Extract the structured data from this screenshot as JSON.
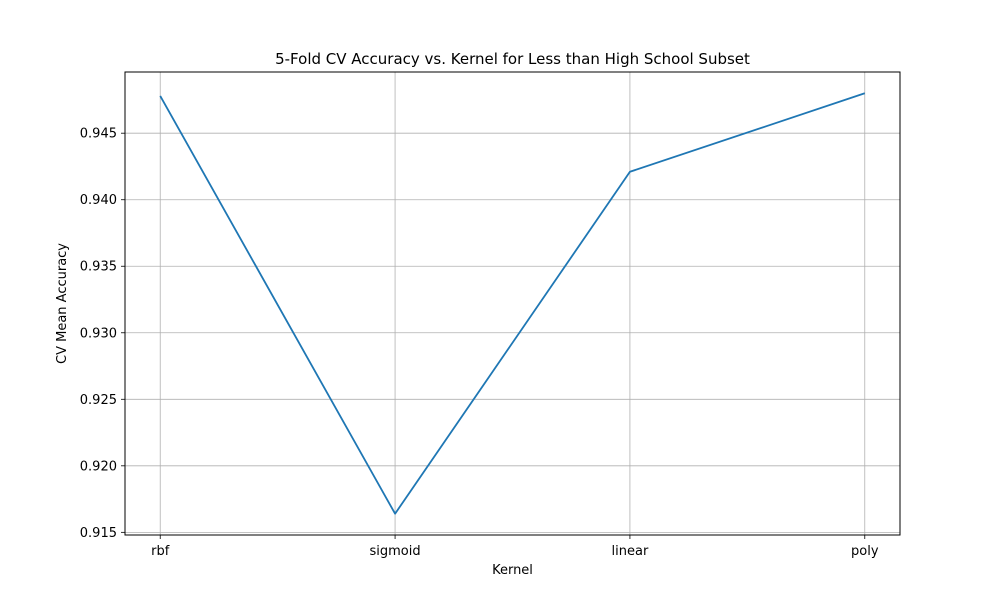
{
  "chart_data": {
    "type": "line",
    "title": "5-Fold CV Accuracy vs. Kernel for Less than High School Subset",
    "xlabel": "Kernel",
    "ylabel": "CV Mean Accuracy",
    "categories": [
      "rbf",
      "sigmoid",
      "linear",
      "poly"
    ],
    "series": [
      {
        "values": [
          0.9478,
          0.9164,
          0.9421,
          0.948
        ],
        "color": "#1f77b4"
      }
    ],
    "ylim": [
      0.9148,
      0.9496
    ],
    "yticks": [
      0.915,
      0.92,
      0.925,
      0.93,
      0.935,
      0.94,
      0.945
    ],
    "ytick_labels": [
      "0.915",
      "0.920",
      "0.925",
      "0.930",
      "0.935",
      "0.940",
      "0.945"
    ],
    "grid": true,
    "legend": false
  }
}
